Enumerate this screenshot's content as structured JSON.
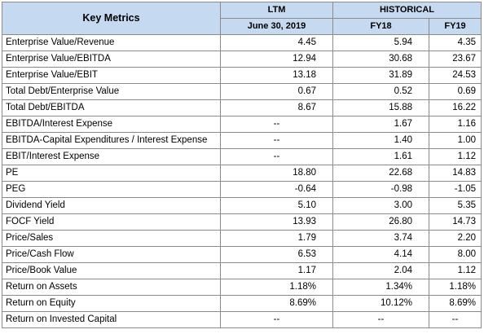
{
  "header": {
    "key_metrics": "Key Metrics",
    "ltm": "LTM",
    "historical": "HISTORICAL",
    "ltm_date": "June 30, 2019",
    "fy18": "FY18",
    "fy19": "FY19"
  },
  "rows": [
    {
      "name": "Enterprise Value/Revenue",
      "ltm": "4.45",
      "fy18": "5.94",
      "fy19": "4.35"
    },
    {
      "name": "Enterprise Value/EBITDA",
      "ltm": "12.94",
      "fy18": "30.68",
      "fy19": "23.67"
    },
    {
      "name": "Enterprise Value/EBIT",
      "ltm": "13.18",
      "fy18": "31.89",
      "fy19": "24.53"
    },
    {
      "name": "Total Debt/Enterprise Value",
      "ltm": "0.67",
      "fy18": "0.52",
      "fy19": "0.69"
    },
    {
      "name": "Total Debt/EBITDA",
      "ltm": "8.67",
      "fy18": "15.88",
      "fy19": "16.22"
    },
    {
      "name": "EBITDA/Interest Expense",
      "ltm": "--",
      "fy18": "1.67",
      "fy19": "1.16"
    },
    {
      "name": "EBITDA-Capital Expenditures / Interest Expense",
      "ltm": "--",
      "fy18": "1.40",
      "fy19": "1.00"
    },
    {
      "name": "EBIT/Interest Expense",
      "ltm": "--",
      "fy18": "1.61",
      "fy19": "1.12"
    },
    {
      "name": "PE",
      "ltm": "18.80",
      "fy18": "22.68",
      "fy19": "14.83"
    },
    {
      "name": "PEG",
      "ltm": "-0.64",
      "fy18": "-0.98",
      "fy19": "-1.05"
    },
    {
      "name": "Dividend Yield",
      "ltm": "5.10",
      "fy18": "3.00",
      "fy19": "5.35"
    },
    {
      "name": "FOCF Yield",
      "ltm": "13.93",
      "fy18": "26.80",
      "fy19": "14.73"
    },
    {
      "name": "Price/Sales",
      "ltm": "1.79",
      "fy18": "3.74",
      "fy19": "2.20"
    },
    {
      "name": "Price/Cash Flow",
      "ltm": "6.53",
      "fy18": "4.14",
      "fy19": "8.00"
    },
    {
      "name": "Price/Book Value",
      "ltm": "1.17",
      "fy18": "2.04",
      "fy19": "1.12"
    },
    {
      "name": "Return on Assets",
      "ltm": "1.18%",
      "fy18": "1.34%",
      "fy19": "1.18%"
    },
    {
      "name": "Return on Equity",
      "ltm": "8.69%",
      "fy18": "10.12%",
      "fy19": "8.69%"
    },
    {
      "name": "Return on Invested Capital",
      "ltm": "--",
      "fy18": "--",
      "fy19": "--"
    }
  ],
  "colors": {
    "header_fill": "#c5d9f1",
    "border": "#8a8a8a"
  }
}
